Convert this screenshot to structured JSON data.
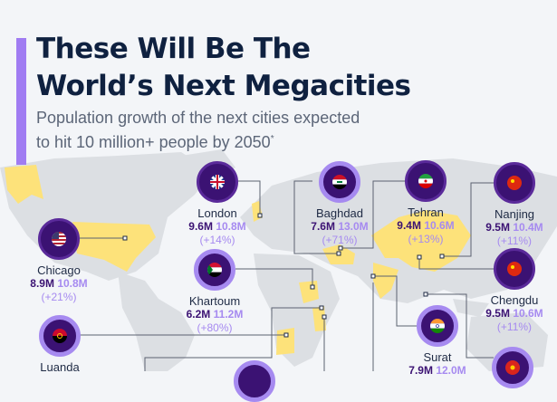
{
  "header": {
    "title_line1": "These Will Be The",
    "title_line2": "World’s Next Megacities",
    "subtitle_line1": "Population growth of the next cities expected",
    "subtitle_line2": "to hit 10 million+ people by 2050",
    "subtitle_mark": "*"
  },
  "colors": {
    "accent": "#a07cf2",
    "badge_dark": "#3b1273",
    "value_light": "#a68af0",
    "highlight_country": "#fde27a",
    "land": "#dcdfe3"
  },
  "cities": {
    "london": {
      "name": "London",
      "current": "9.6M",
      "future": "10.8M",
      "growth": "(+14%)",
      "flag": "uk-flag-icon"
    },
    "chicago": {
      "name": "Chicago",
      "current": "8.9M",
      "future": "10.8M",
      "growth": "(+21%)",
      "flag": "us-flag-icon"
    },
    "khartoum": {
      "name": "Khartoum",
      "current": "6.2M",
      "future": "11.2M",
      "growth": "(+80%)",
      "flag": "sudan-flag-icon"
    },
    "luanda": {
      "name": "Luanda",
      "flag": "angola-flag-icon"
    },
    "baghdad": {
      "name": "Baghdad",
      "current": "7.6M",
      "future": "13.0M",
      "growth": "(+71%)",
      "flag": "iraq-flag-icon"
    },
    "tehran": {
      "name": "Tehran",
      "current": "9.4M",
      "future": "10.6M",
      "growth": "(+13%)",
      "flag": "iran-flag-icon"
    },
    "nanjing": {
      "name": "Nanjing",
      "current": "9.5M",
      "future": "10.4M",
      "growth": "(+11%)",
      "flag": "china-flag-icon"
    },
    "chengdu": {
      "name": "Chengdu",
      "current": "9.5M",
      "future": "10.6M",
      "growth": "(+11%)",
      "flag": "china-flag-icon"
    },
    "surat": {
      "name": "Surat",
      "current": "7.9M",
      "future": "12.0M",
      "flag": "india-flag-icon"
    }
  }
}
